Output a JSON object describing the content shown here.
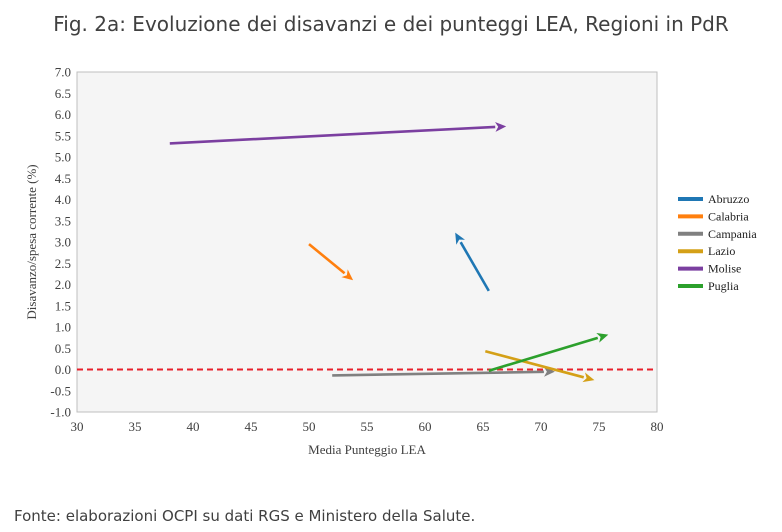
{
  "title": "Fig. 2a: Evoluzione dei disavanzi e dei punteggi LEA, Regioni in PdR",
  "source": "Fonte: elaborazioni OCPI su dati RGS e Ministero della Salute.",
  "chart_data": {
    "type": "scatter",
    "subtype": "arrows",
    "xlabel": "Media Punteggio LEA",
    "ylabel": "Disavanzo/spesa corrente (%)",
    "xlim": [
      30,
      80
    ],
    "ylim": [
      -1.0,
      7.0
    ],
    "xticks": [
      30,
      35,
      40,
      45,
      50,
      55,
      60,
      65,
      70,
      75,
      80
    ],
    "yticks": [
      -1.0,
      -0.5,
      0.0,
      0.5,
      1.0,
      1.5,
      2.0,
      2.5,
      3.0,
      3.5,
      4.0,
      4.5,
      5.0,
      5.5,
      6.0,
      6.5,
      7.0
    ],
    "grid": false,
    "reference_line": {
      "y": 0.0,
      "color": "#e8202a",
      "style": "dashed"
    },
    "legend_position": "right",
    "series": [
      {
        "name": "Abruzzo",
        "color": "#1f77b4",
        "from": [
          65.5,
          1.85
        ],
        "to": [
          62.6,
          3.22
        ]
      },
      {
        "name": "Calabria",
        "color": "#ff7f0e",
        "from": [
          50.0,
          2.95
        ],
        "to": [
          53.8,
          2.1
        ]
      },
      {
        "name": "Campania",
        "color": "#808080",
        "from": [
          52.0,
          -0.14
        ],
        "to": [
          71.2,
          -0.05
        ]
      },
      {
        "name": "Lazio",
        "color": "#d4a017",
        "from": [
          65.2,
          0.43
        ],
        "to": [
          74.6,
          -0.25
        ]
      },
      {
        "name": "Molise",
        "color": "#7b3fa0",
        "from": [
          38.0,
          5.32
        ],
        "to": [
          67.0,
          5.72
        ]
      },
      {
        "name": "Puglia",
        "color": "#2ca02c",
        "from": [
          65.5,
          -0.03
        ],
        "to": [
          75.8,
          0.82
        ]
      }
    ]
  }
}
